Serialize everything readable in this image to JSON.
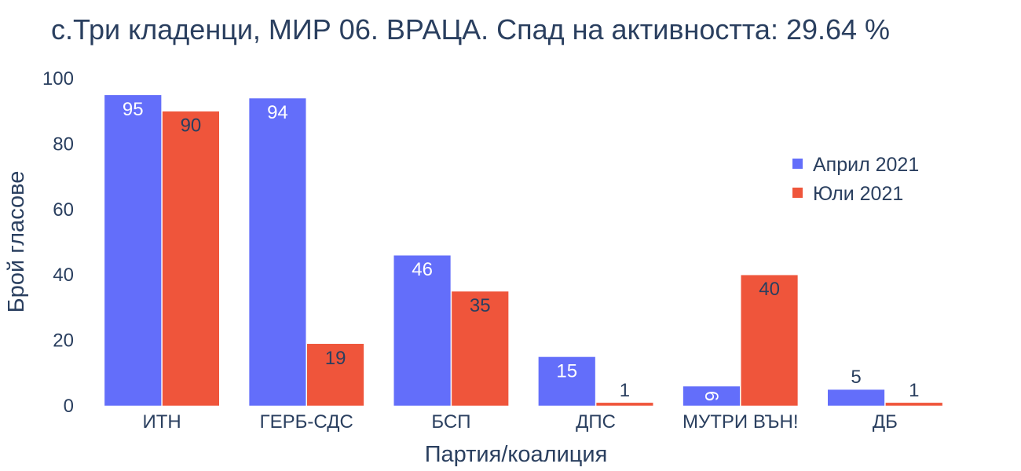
{
  "chart_data": {
    "type": "bar",
    "title": "с.Три кладенци, МИР 06. ВРАЦА. Спад на активността: 29.64 %",
    "xlabel": "Партия/коалиция",
    "ylabel": "Брой гласове",
    "categories": [
      "ИТН",
      "ГЕРБ-СДС",
      "БСП",
      "ДПС",
      "МУТРИ ВЪН!",
      "ДБ"
    ],
    "series": [
      {
        "name": "Април 2021",
        "color": "#636efa",
        "values": [
          95,
          94,
          46,
          15,
          6,
          5
        ]
      },
      {
        "name": "Юли 2021",
        "color": "#ef553b",
        "values": [
          90,
          19,
          35,
          1,
          40,
          1
        ]
      }
    ],
    "yticks": [
      0,
      20,
      40,
      60,
      80,
      100
    ],
    "ylim": [
      0,
      100
    ],
    "grid": false,
    "legend_position": "top-right"
  }
}
